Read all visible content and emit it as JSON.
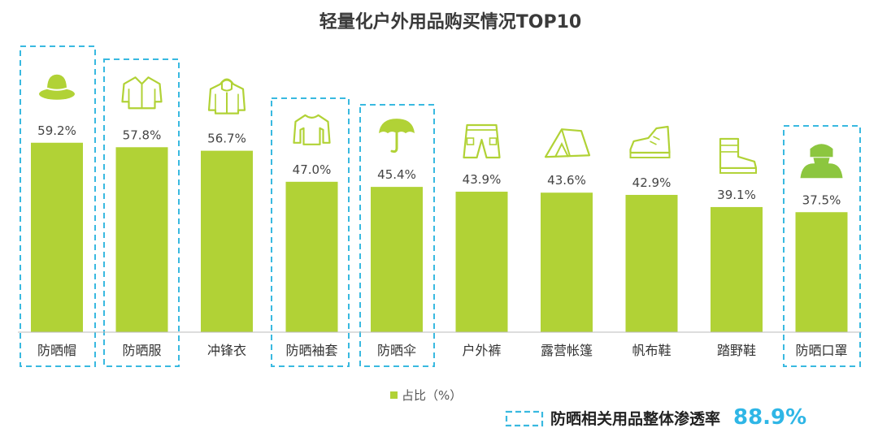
{
  "chart_data": {
    "type": "bar",
    "title": "轻量化户外用品购买情况TOP10",
    "categories": [
      "防晒帽",
      "防晒服",
      "冲锋衣",
      "防晒袖套",
      "防晒伞",
      "户外裤",
      "露营帐篷",
      "帆布鞋",
      "踏野鞋",
      "防晒口罩"
    ],
    "series": [
      {
        "name": "占比（%）",
        "values": [
          59.2,
          57.8,
          56.7,
          47.0,
          45.4,
          43.9,
          43.6,
          42.9,
          39.1,
          37.5
        ]
      }
    ],
    "value_labels": [
      "59.2%",
      "57.8%",
      "56.7%",
      "47.0%",
      "45.4%",
      "43.9%",
      "43.6%",
      "42.9%",
      "39.1%",
      "37.5%"
    ],
    "highlighted": [
      "防晒帽",
      "防晒服",
      "防晒袖套",
      "防晒伞",
      "防晒口罩"
    ],
    "icons": [
      "hat-icon",
      "jacket-icon",
      "windbreaker-icon",
      "sleeve-icon",
      "umbrella-icon",
      "pants-icon",
      "tent-icon",
      "canvas-shoe-icon",
      "boot-icon",
      "mask-icon"
    ],
    "ylim": [
      0,
      100
    ],
    "grid": false,
    "legend_position": "bottom-center",
    "xlabel": "",
    "ylabel": ""
  },
  "note": {
    "label": "防晒相关用品整体渗透率",
    "value": "88.9%"
  },
  "colors": {
    "bar": "#b1d236",
    "highlight_border": "#39b9e0",
    "note_value": "#2fb6e6",
    "title": "#3a3a3a",
    "axis": "#bbbbbb"
  }
}
